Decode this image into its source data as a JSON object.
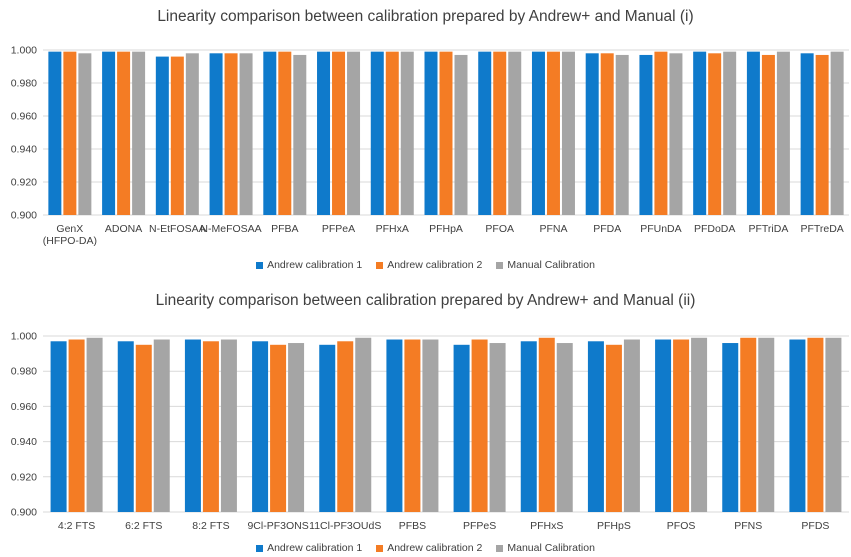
{
  "colors": {
    "series1": "#0F7ACB",
    "series2": "#F47C24",
    "series3": "#A5A5A5",
    "grid": "#D9D9D9",
    "text": "#404040"
  },
  "chart_data": [
    {
      "type": "bar",
      "title": "Linearity comparison between calibration prepared by Andrew+ and Manual (i)",
      "categories": [
        [
          "GenX",
          "(HFPO-DA)"
        ],
        [
          "ADONA"
        ],
        [
          "N-EtFOSAA"
        ],
        [
          "N-MeFOSAA"
        ],
        [
          "PFBA"
        ],
        [
          "PFPeA"
        ],
        [
          "PFHxA"
        ],
        [
          "PFHpA"
        ],
        [
          "PFOA"
        ],
        [
          "PFNA"
        ],
        [
          "PFDA"
        ],
        [
          "PFUnDA"
        ],
        [
          "PFDoDA"
        ],
        [
          "PFTriDA"
        ],
        [
          "PFTreDA"
        ]
      ],
      "ylim": [
        0.9,
        1.0
      ],
      "yticks": [
        "0.900",
        "0.920",
        "0.940",
        "0.960",
        "0.980",
        "1.000"
      ],
      "grid": true,
      "legend_position": "bottom",
      "series": [
        {
          "name": "Andrew calibration 1",
          "values": [
            0.999,
            0.999,
            0.996,
            0.998,
            0.999,
            0.999,
            0.999,
            0.999,
            0.999,
            0.999,
            0.998,
            0.997,
            0.999,
            0.999,
            0.998
          ]
        },
        {
          "name": "Andrew calibration 2",
          "values": [
            0.999,
            0.999,
            0.996,
            0.998,
            0.999,
            0.999,
            0.999,
            0.999,
            0.999,
            0.999,
            0.998,
            0.999,
            0.998,
            0.997,
            0.997
          ]
        },
        {
          "name": "Manual Calibration",
          "values": [
            0.998,
            0.999,
            0.998,
            0.998,
            0.997,
            0.999,
            0.999,
            0.997,
            0.999,
            0.999,
            0.997,
            0.998,
            0.999,
            0.999,
            0.999
          ]
        }
      ]
    },
    {
      "type": "bar",
      "title": "Linearity comparison between calibration prepared by Andrew+ and Manual (ii)",
      "categories": [
        [
          "4:2 FTS"
        ],
        [
          "6:2 FTS"
        ],
        [
          "8:2 FTS"
        ],
        [
          "9Cl-PF3ONS"
        ],
        [
          "11Cl-PF3OUdS"
        ],
        [
          "PFBS"
        ],
        [
          "PFPeS"
        ],
        [
          "PFHxS"
        ],
        [
          "PFHpS"
        ],
        [
          "PFOS"
        ],
        [
          "PFNS"
        ],
        [
          "PFDS"
        ]
      ],
      "ylim": [
        0.9,
        1.0
      ],
      "yticks": [
        "0.900",
        "0.920",
        "0.940",
        "0.960",
        "0.980",
        "1.000"
      ],
      "grid": true,
      "legend_position": "bottom",
      "series": [
        {
          "name": "Andrew calibration 1",
          "values": [
            0.997,
            0.997,
            0.998,
            0.997,
            0.995,
            0.998,
            0.995,
            0.997,
            0.997,
            0.998,
            0.996,
            0.998
          ]
        },
        {
          "name": "Andrew calibration 2",
          "values": [
            0.998,
            0.995,
            0.997,
            0.995,
            0.997,
            0.998,
            0.998,
            0.999,
            0.995,
            0.998,
            0.999,
            0.999
          ]
        },
        {
          "name": "Manual Calibration",
          "values": [
            0.999,
            0.998,
            0.998,
            0.996,
            0.999,
            0.998,
            0.996,
            0.996,
            0.998,
            0.999,
            0.999,
            0.999
          ]
        }
      ]
    }
  ]
}
